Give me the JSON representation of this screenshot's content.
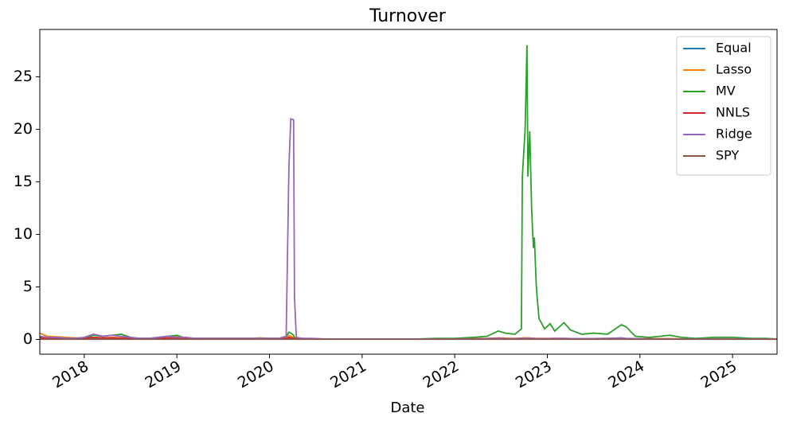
{
  "chart_data": {
    "type": "line",
    "title": "Turnover",
    "xlabel": "Date",
    "x": [
      2017.52,
      2017.6,
      2017.7,
      2017.8,
      2017.9,
      2018.0,
      2018.1,
      2018.2,
      2018.3,
      2018.4,
      2018.5,
      2018.6,
      2018.7,
      2018.8,
      2018.9,
      2019.0,
      2019.1,
      2019.2,
      2019.3,
      2019.4,
      2019.5,
      2019.6,
      2019.7,
      2019.8,
      2019.9,
      2020.0,
      2020.1,
      2020.18,
      2020.21,
      2020.23,
      2020.26,
      2020.27,
      2020.29,
      2020.35,
      2020.45,
      2020.6,
      2020.8,
      2021.0,
      2021.2,
      2021.4,
      2021.6,
      2021.8,
      2022.0,
      2022.2,
      2022.35,
      2022.47,
      2022.55,
      2022.65,
      2022.72,
      2022.73,
      2022.76,
      2022.78,
      2022.79,
      2022.81,
      2022.83,
      2022.84,
      2022.85,
      2022.86,
      2022.88,
      2022.89,
      2022.91,
      2022.97,
      2023.03,
      2023.08,
      2023.18,
      2023.25,
      2023.37,
      2023.5,
      2023.65,
      2023.8,
      2023.85,
      2023.95,
      2024.1,
      2024.32,
      2024.45,
      2024.6,
      2024.8,
      2025.0,
      2025.2,
      2025.35,
      2025.48
    ],
    "series": [
      {
        "name": "Equal",
        "color": "#1f77b4",
        "values": [
          0.1,
          0.08,
          0.06,
          0.05,
          0.05,
          0.06,
          0.08,
          0.07,
          0.06,
          0.05,
          0.05,
          0.05,
          0.05,
          0.06,
          0.07,
          0.06,
          0.05,
          0.05,
          0.05,
          0.05,
          0.05,
          0.05,
          0.05,
          0.05,
          0.05,
          0.05,
          0.06,
          0.1,
          0.15,
          0.12,
          0.1,
          0.08,
          0.06,
          0.05,
          0.05,
          0.04,
          0.04,
          0.04,
          0.04,
          0.04,
          0.04,
          0.04,
          0.05,
          0.06,
          0.07,
          0.08,
          0.07,
          0.06,
          0.07,
          0.08,
          0.08,
          0.08,
          0.08,
          0.08,
          0.08,
          0.08,
          0.07,
          0.07,
          0.07,
          0.07,
          0.07,
          0.06,
          0.06,
          0.06,
          0.06,
          0.05,
          0.05,
          0.05,
          0.05,
          0.05,
          0.05,
          0.05,
          0.05,
          0.05,
          0.05,
          0.05,
          0.05,
          0.05,
          0.05,
          0.05,
          0.05
        ]
      },
      {
        "name": "Lasso",
        "color": "#ff7f0e",
        "values": [
          0.6,
          0.3,
          0.25,
          0.2,
          0.15,
          0.15,
          0.2,
          0.15,
          0.2,
          0.15,
          0.1,
          0.1,
          0.1,
          0.15,
          0.2,
          0.3,
          0.15,
          0.1,
          0.1,
          0.1,
          0.1,
          0.1,
          0.1,
          0.1,
          0.15,
          0.1,
          0.1,
          0.2,
          0.4,
          0.3,
          0.2,
          0.1,
          0.1,
          0.08,
          0.06,
          0.05,
          0.05,
          0.05,
          0.05,
          0.05,
          0.05,
          0.05,
          0.05,
          0.08,
          0.1,
          0.15,
          0.12,
          0.1,
          0.12,
          0.15,
          0.15,
          0.15,
          0.15,
          0.15,
          0.12,
          0.12,
          0.12,
          0.12,
          0.1,
          0.1,
          0.1,
          0.1,
          0.1,
          0.1,
          0.1,
          0.08,
          0.08,
          0.08,
          0.1,
          0.1,
          0.08,
          0.08,
          0.08,
          0.08,
          0.06,
          0.06,
          0.06,
          0.06,
          0.05,
          0.05,
          0.05
        ]
      },
      {
        "name": "MV",
        "color": "#2ca02c",
        "values": [
          0.2,
          0.1,
          0.2,
          0.1,
          0.1,
          0.1,
          0.4,
          0.3,
          0.4,
          0.5,
          0.2,
          0.1,
          0.1,
          0.2,
          0.3,
          0.4,
          0.1,
          0.1,
          0.1,
          0.1,
          0.1,
          0.1,
          0.1,
          0.1,
          0.1,
          0.1,
          0.1,
          0.3,
          0.7,
          0.6,
          0.4,
          0.2,
          0.1,
          0.1,
          0.05,
          0.05,
          0.05,
          0.05,
          0.05,
          0.05,
          0.05,
          0.1,
          0.1,
          0.2,
          0.3,
          0.8,
          0.6,
          0.5,
          1.0,
          15.5,
          20,
          28,
          15.5,
          19.8,
          12.5,
          10.5,
          8.7,
          9.7,
          5.2,
          4,
          2,
          1,
          1.5,
          0.8,
          1.6,
          0.9,
          0.5,
          0.6,
          0.5,
          1.4,
          1.2,
          0.3,
          0.2,
          0.4,
          0.2,
          0.1,
          0.2,
          0.2,
          0.1,
          0.1,
          0.05
        ]
      },
      {
        "name": "NNLS",
        "color": "#d62728",
        "values": [
          0.15,
          0.1,
          0.1,
          0.08,
          0.08,
          0.1,
          0.2,
          0.15,
          0.15,
          0.12,
          0.1,
          0.08,
          0.08,
          0.1,
          0.12,
          0.1,
          0.08,
          0.06,
          0.06,
          0.06,
          0.06,
          0.06,
          0.06,
          0.06,
          0.06,
          0.06,
          0.06,
          0.1,
          0.2,
          0.15,
          0.1,
          0.08,
          0.06,
          0.05,
          0.05,
          0.04,
          0.04,
          0.04,
          0.04,
          0.04,
          0.04,
          0.04,
          0.05,
          0.06,
          0.08,
          0.1,
          0.08,
          0.08,
          0.1,
          0.1,
          0.1,
          0.1,
          0.1,
          0.1,
          0.1,
          0.1,
          0.08,
          0.08,
          0.08,
          0.08,
          0.08,
          0.08,
          0.08,
          0.08,
          0.08,
          0.06,
          0.06,
          0.06,
          0.06,
          0.06,
          0.06,
          0.06,
          0.05,
          0.05,
          0.05,
          0.05,
          0.05,
          0.05,
          0.05,
          0.05,
          0.05
        ]
      },
      {
        "name": "Ridge",
        "color": "#9467bd",
        "values": [
          0.3,
          0.2,
          0.2,
          0.1,
          0.1,
          0.2,
          0.5,
          0.3,
          0.4,
          0.3,
          0.2,
          0.1,
          0.1,
          0.2,
          0.3,
          0.2,
          0.2,
          0.1,
          0.1,
          0.1,
          0.1,
          0.1,
          0.1,
          0.1,
          0.1,
          0.1,
          0.1,
          0.3,
          16.5,
          21,
          20.9,
          4,
          0.2,
          0.1,
          0.1,
          0.05,
          0.05,
          0.05,
          0.05,
          0.05,
          0.05,
          0.05,
          0.05,
          0.05,
          0.08,
          0.1,
          0.08,
          0.08,
          0.1,
          0.1,
          0.1,
          0.1,
          0.1,
          0.1,
          0.1,
          0.1,
          0.1,
          0.08,
          0.08,
          0.08,
          0.08,
          0.08,
          0.08,
          0.1,
          0.1,
          0.08,
          0.08,
          0.08,
          0.1,
          0.15,
          0.1,
          0.08,
          0.06,
          0.06,
          0.05,
          0.05,
          0.05,
          0.05,
          0.05,
          0.05,
          0.05
        ]
      },
      {
        "name": "SPY",
        "color": "#8c564b",
        "values": [
          0.02,
          0.02,
          0.02,
          0.02,
          0.02,
          0.02,
          0.02,
          0.02,
          0.02,
          0.02,
          0.02,
          0.02,
          0.02,
          0.02,
          0.02,
          0.02,
          0.02,
          0.02,
          0.02,
          0.02,
          0.02,
          0.02,
          0.02,
          0.02,
          0.02,
          0.02,
          0.02,
          0.02,
          0.02,
          0.02,
          0.02,
          0.02,
          0.02,
          0.02,
          0.02,
          0.02,
          0.02,
          0.02,
          0.02,
          0.02,
          0.02,
          0.02,
          0.02,
          0.02,
          0.02,
          0.02,
          0.02,
          0.02,
          0.02,
          0.02,
          0.02,
          0.02,
          0.02,
          0.02,
          0.02,
          0.02,
          0.02,
          0.02,
          0.02,
          0.02,
          0.02,
          0.02,
          0.02,
          0.02,
          0.02,
          0.02,
          0.02,
          0.02,
          0.02,
          0.02,
          0.02,
          0.02,
          0.02,
          0.02,
          0.02,
          0.02,
          0.02,
          0.02,
          0.02,
          0.02,
          0.02
        ]
      }
    ],
    "xlim": [
      2017.52,
      2025.48
    ],
    "xticks": [
      2018,
      2019,
      2020,
      2021,
      2022,
      2023,
      2024,
      2025
    ],
    "ylim": [
      -1.4,
      29.5
    ],
    "yticks": [
      0,
      5,
      10,
      15,
      20,
      25
    ],
    "grid": false,
    "legend": "upper right"
  }
}
